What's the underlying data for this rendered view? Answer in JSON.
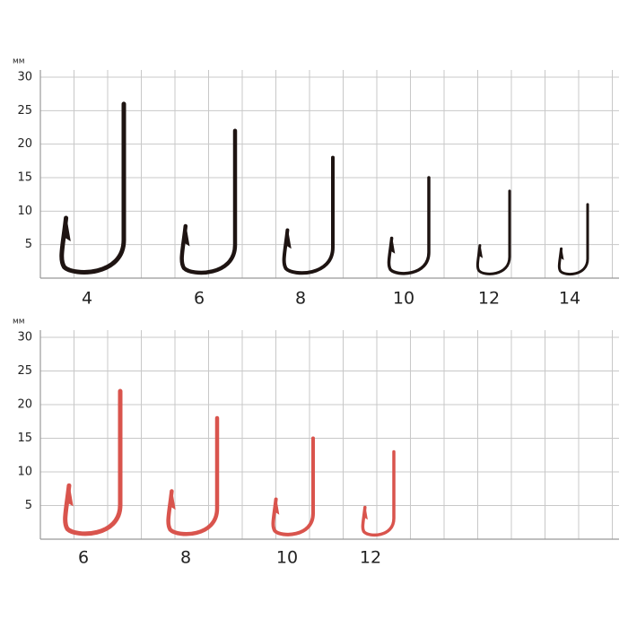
{
  "chart_data": [
    {
      "type": "hook",
      "y_label": "мм",
      "color": "#1e1412",
      "categories": [
        "4",
        "6",
        "8",
        "10",
        "12",
        "14"
      ],
      "values": [
        26,
        22,
        18,
        15,
        13,
        11
      ],
      "ylim": [
        0,
        30
      ],
      "yticks": [
        5,
        10,
        15,
        20,
        25,
        30
      ],
      "grid": true
    },
    {
      "type": "hook",
      "y_label": "мм",
      "color": "#d9544d",
      "categories": [
        "6",
        "8",
        "10",
        "12"
      ],
      "values": [
        22,
        18,
        15,
        13
      ],
      "ylim": [
        0,
        30
      ],
      "yticks": [
        5,
        10,
        15,
        20,
        25,
        30
      ],
      "grid": true
    }
  ]
}
